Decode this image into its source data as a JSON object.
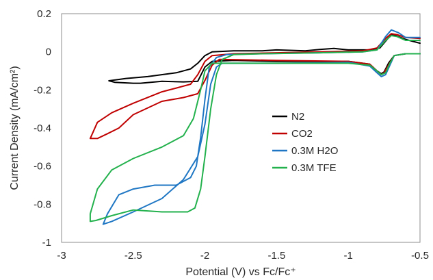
{
  "chart_data": {
    "type": "line",
    "title": "",
    "xlabel": "Potential (V) vs Fc/Fc⁺",
    "ylabel": "Current Density (mA/cm²)",
    "xlim": [
      -3,
      -0.5
    ],
    "ylim": [
      -1,
      0.2
    ],
    "x_ticks": [
      "-3",
      "-2.5",
      "-2",
      "-1.5",
      "-1",
      "-0.5"
    ],
    "y_ticks": [
      "0.2",
      "0",
      "-0.2",
      "-0.4",
      "-0.6",
      "-0.8",
      "-1"
    ],
    "grid": false,
    "legend_position": "center-right",
    "series": [
      {
        "name": "N2",
        "color": "#000000",
        "points": [
          [
            -0.5,
            0.045
          ],
          [
            -0.6,
            0.065
          ],
          [
            -0.67,
            0.085
          ],
          [
            -0.7,
            0.088
          ],
          [
            -0.73,
            0.065
          ],
          [
            -0.78,
            0.02
          ],
          [
            -0.85,
            0.01
          ],
          [
            -1.0,
            0.01
          ],
          [
            -1.1,
            0.018
          ],
          [
            -1.2,
            0.012
          ],
          [
            -1.3,
            0.005
          ],
          [
            -1.5,
            0.01
          ],
          [
            -1.6,
            0.005
          ],
          [
            -1.8,
            0.005
          ],
          [
            -1.95,
            0.0
          ],
          [
            -2.0,
            -0.02
          ],
          [
            -2.05,
            -0.06
          ],
          [
            -2.1,
            -0.09
          ],
          [
            -2.2,
            -0.11
          ],
          [
            -2.4,
            -0.13
          ],
          [
            -2.55,
            -0.14
          ],
          [
            -2.67,
            -0.152
          ],
          [
            -2.63,
            -0.16
          ],
          [
            -2.5,
            -0.165
          ],
          [
            -2.45,
            -0.165
          ],
          [
            -2.3,
            -0.155
          ],
          [
            -2.15,
            -0.158
          ],
          [
            -2.05,
            -0.155
          ],
          [
            -2.0,
            -0.08
          ],
          [
            -1.95,
            -0.05
          ],
          [
            -1.8,
            -0.045
          ],
          [
            -1.5,
            -0.05
          ],
          [
            -1.0,
            -0.05
          ],
          [
            -0.85,
            -0.065
          ],
          [
            -0.8,
            -0.1
          ],
          [
            -0.77,
            -0.115
          ],
          [
            -0.75,
            -0.105
          ],
          [
            -0.72,
            -0.06
          ],
          [
            -0.68,
            -0.02
          ],
          [
            -0.6,
            -0.01
          ],
          [
            -0.5,
            -0.01
          ]
        ]
      },
      {
        "name": "CO2",
        "color": "#c00000",
        "points": [
          [
            -0.5,
            0.07
          ],
          [
            -0.6,
            0.075
          ],
          [
            -0.66,
            0.09
          ],
          [
            -0.7,
            0.095
          ],
          [
            -0.74,
            0.07
          ],
          [
            -0.8,
            0.02
          ],
          [
            -0.9,
            0.005
          ],
          [
            -1.2,
            0.0
          ],
          [
            -1.5,
            -0.005
          ],
          [
            -1.8,
            -0.01
          ],
          [
            -1.95,
            -0.02
          ],
          [
            -2.0,
            -0.05
          ],
          [
            -2.05,
            -0.12
          ],
          [
            -2.1,
            -0.17
          ],
          [
            -2.2,
            -0.19
          ],
          [
            -2.3,
            -0.21
          ],
          [
            -2.5,
            -0.27
          ],
          [
            -2.65,
            -0.32
          ],
          [
            -2.75,
            -0.37
          ],
          [
            -2.8,
            -0.455
          ],
          [
            -2.75,
            -0.455
          ],
          [
            -2.68,
            -0.43
          ],
          [
            -2.6,
            -0.4
          ],
          [
            -2.5,
            -0.33
          ],
          [
            -2.3,
            -0.26
          ],
          [
            -2.15,
            -0.24
          ],
          [
            -2.05,
            -0.22
          ],
          [
            -2.0,
            -0.15
          ],
          [
            -1.95,
            -0.07
          ],
          [
            -1.9,
            -0.04
          ],
          [
            -1.5,
            -0.045
          ],
          [
            -1.0,
            -0.05
          ],
          [
            -0.85,
            -0.065
          ],
          [
            -0.8,
            -0.1
          ],
          [
            -0.77,
            -0.12
          ],
          [
            -0.75,
            -0.11
          ],
          [
            -0.72,
            -0.07
          ],
          [
            -0.68,
            -0.02
          ],
          [
            -0.6,
            -0.01
          ],
          [
            -0.5,
            -0.01
          ]
        ]
      },
      {
        "name": "0.3M H2O",
        "color": "#1f77c4",
        "points": [
          [
            -0.5,
            0.075
          ],
          [
            -0.6,
            0.075
          ],
          [
            -0.65,
            0.1
          ],
          [
            -0.7,
            0.115
          ],
          [
            -0.74,
            0.08
          ],
          [
            -0.8,
            0.01
          ],
          [
            -0.9,
            0.0
          ],
          [
            -1.2,
            -0.005
          ],
          [
            -1.6,
            -0.01
          ],
          [
            -1.85,
            -0.015
          ],
          [
            -1.92,
            -0.03
          ],
          [
            -1.97,
            -0.08
          ],
          [
            -2.0,
            -0.25
          ],
          [
            -2.03,
            -0.45
          ],
          [
            -2.06,
            -0.6
          ],
          [
            -2.1,
            -0.66
          ],
          [
            -2.2,
            -0.7
          ],
          [
            -2.35,
            -0.7
          ],
          [
            -2.5,
            -0.72
          ],
          [
            -2.6,
            -0.75
          ],
          [
            -2.68,
            -0.85
          ],
          [
            -2.71,
            -0.905
          ],
          [
            -2.65,
            -0.89
          ],
          [
            -2.5,
            -0.84
          ],
          [
            -2.3,
            -0.77
          ],
          [
            -2.15,
            -0.67
          ],
          [
            -2.05,
            -0.55
          ],
          [
            -2.0,
            -0.38
          ],
          [
            -1.96,
            -0.17
          ],
          [
            -1.92,
            -0.08
          ],
          [
            -1.88,
            -0.06
          ],
          [
            -1.5,
            -0.06
          ],
          [
            -1.0,
            -0.055
          ],
          [
            -0.85,
            -0.075
          ],
          [
            -0.8,
            -0.11
          ],
          [
            -0.77,
            -0.13
          ],
          [
            -0.74,
            -0.12
          ],
          [
            -0.71,
            -0.07
          ],
          [
            -0.68,
            -0.02
          ],
          [
            -0.6,
            -0.01
          ],
          [
            -0.5,
            -0.01
          ]
        ]
      },
      {
        "name": "0.3M TFE",
        "color": "#22b14c",
        "points": [
          [
            -0.5,
            0.06
          ],
          [
            -0.6,
            0.06
          ],
          [
            -0.66,
            0.08
          ],
          [
            -0.7,
            0.085
          ],
          [
            -0.74,
            0.06
          ],
          [
            -0.8,
            0.01
          ],
          [
            -0.9,
            0.0
          ],
          [
            -1.2,
            -0.005
          ],
          [
            -1.6,
            -0.01
          ],
          [
            -1.8,
            -0.015
          ],
          [
            -1.88,
            -0.04
          ],
          [
            -1.92,
            -0.12
          ],
          [
            -1.96,
            -0.3
          ],
          [
            -2.0,
            -0.55
          ],
          [
            -2.03,
            -0.72
          ],
          [
            -2.07,
            -0.82
          ],
          [
            -2.12,
            -0.84
          ],
          [
            -2.3,
            -0.84
          ],
          [
            -2.5,
            -0.83
          ],
          [
            -2.65,
            -0.86
          ],
          [
            -2.76,
            -0.885
          ],
          [
            -2.8,
            -0.89
          ],
          [
            -2.8,
            -0.85
          ],
          [
            -2.75,
            -0.72
          ],
          [
            -2.65,
            -0.62
          ],
          [
            -2.5,
            -0.56
          ],
          [
            -2.3,
            -0.5
          ],
          [
            -2.15,
            -0.44
          ],
          [
            -2.08,
            -0.35
          ],
          [
            -2.03,
            -0.2
          ],
          [
            -2.0,
            -0.1
          ],
          [
            -1.95,
            -0.06
          ],
          [
            -1.5,
            -0.06
          ],
          [
            -1.0,
            -0.06
          ],
          [
            -0.85,
            -0.07
          ],
          [
            -0.8,
            -0.1
          ],
          [
            -0.77,
            -0.12
          ],
          [
            -0.74,
            -0.11
          ],
          [
            -0.71,
            -0.06
          ],
          [
            -0.68,
            -0.02
          ],
          [
            -0.6,
            -0.01
          ],
          [
            -0.5,
            -0.01
          ]
        ]
      }
    ]
  }
}
